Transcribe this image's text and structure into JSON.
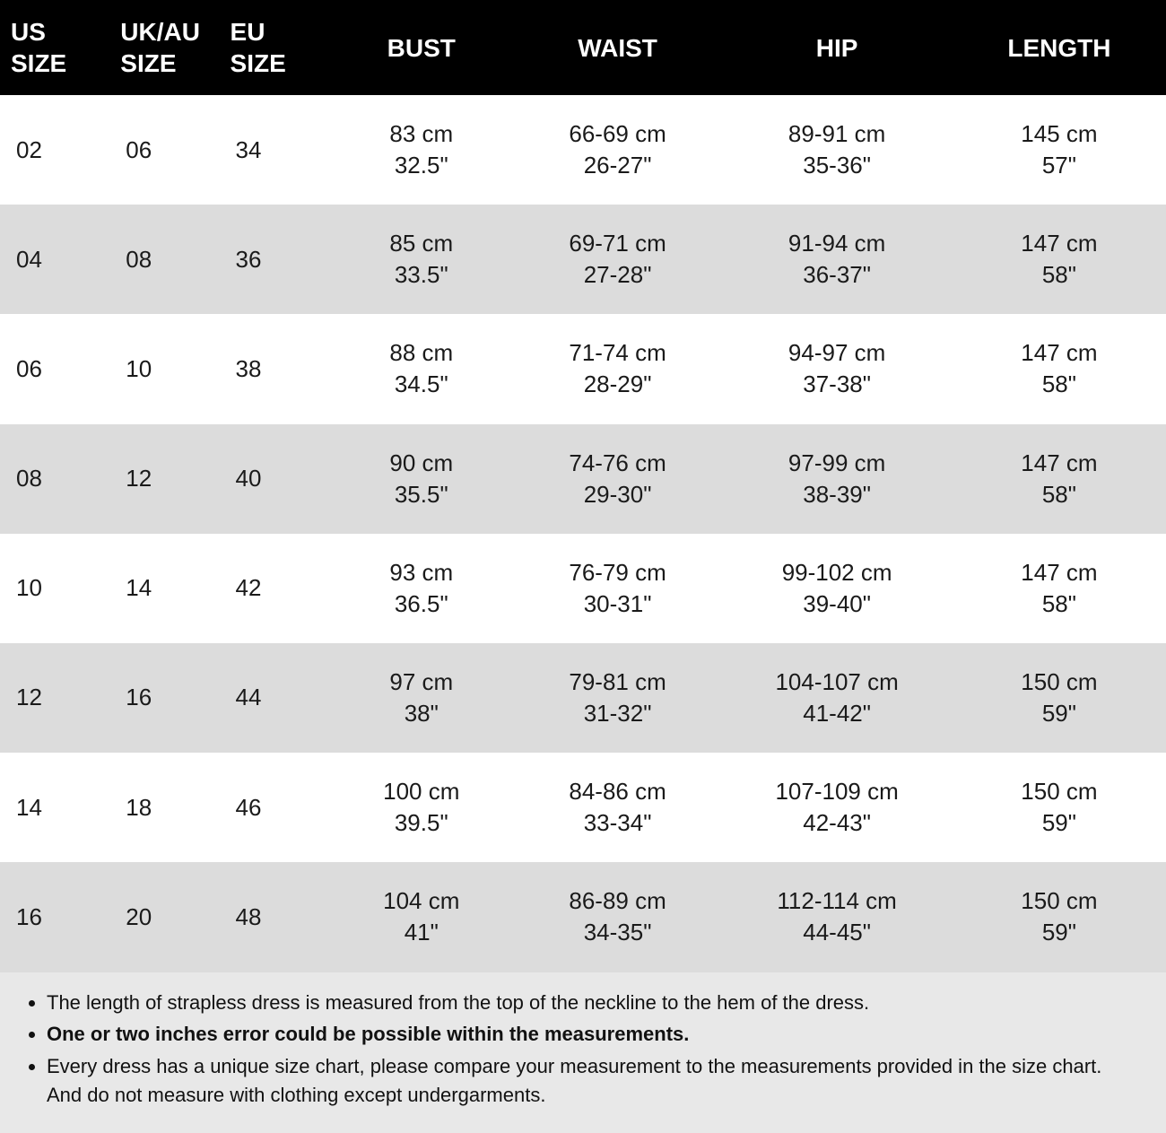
{
  "table": {
    "header_bg": "#000000",
    "header_fg": "#ffffff",
    "row_odd_bg": "#ffffff",
    "row_even_bg": "#dcdcdc",
    "text_color": "#1a1a1a",
    "header_fontsize_pt": 21,
    "body_fontsize_pt": 20,
    "columns": [
      {
        "key": "us",
        "label_line1": "US",
        "label_line2": "SIZE",
        "align": "left",
        "type": "size"
      },
      {
        "key": "ukau",
        "label_line1": "UK/AU",
        "label_line2": "SIZE",
        "align": "left",
        "type": "size"
      },
      {
        "key": "eu",
        "label_line1": "EU",
        "label_line2": "SIZE",
        "align": "left",
        "type": "size"
      },
      {
        "key": "bust",
        "label_line1": "BUST",
        "label_line2": "",
        "align": "center",
        "type": "measure"
      },
      {
        "key": "waist",
        "label_line1": "WAIST",
        "label_line2": "",
        "align": "center",
        "type": "measure"
      },
      {
        "key": "hip",
        "label_line1": "HIP",
        "label_line2": "",
        "align": "center",
        "type": "measure"
      },
      {
        "key": "length",
        "label_line1": "LENGTH",
        "label_line2": "",
        "align": "center",
        "type": "measure"
      }
    ],
    "rows": [
      {
        "us": "02",
        "ukau": "06",
        "eu": "34",
        "bust": {
          "cm": "83 cm",
          "in": "32.5\""
        },
        "waist": {
          "cm": "66-69 cm",
          "in": "26-27\""
        },
        "hip": {
          "cm": "89-91 cm",
          "in": "35-36\""
        },
        "length": {
          "cm": "145 cm",
          "in": "57\""
        }
      },
      {
        "us": "04",
        "ukau": "08",
        "eu": "36",
        "bust": {
          "cm": "85 cm",
          "in": "33.5\""
        },
        "waist": {
          "cm": "69-71 cm",
          "in": "27-28\""
        },
        "hip": {
          "cm": "91-94 cm",
          "in": "36-37\""
        },
        "length": {
          "cm": "147 cm",
          "in": "58\""
        }
      },
      {
        "us": "06",
        "ukau": "10",
        "eu": "38",
        "bust": {
          "cm": "88 cm",
          "in": "34.5\""
        },
        "waist": {
          "cm": "71-74 cm",
          "in": "28-29\""
        },
        "hip": {
          "cm": "94-97 cm",
          "in": "37-38\""
        },
        "length": {
          "cm": "147 cm",
          "in": "58\""
        }
      },
      {
        "us": "08",
        "ukau": "12",
        "eu": "40",
        "bust": {
          "cm": "90 cm",
          "in": "35.5\""
        },
        "waist": {
          "cm": "74-76 cm",
          "in": "29-30\""
        },
        "hip": {
          "cm": "97-99 cm",
          "in": "38-39\""
        },
        "length": {
          "cm": "147 cm",
          "in": "58\""
        }
      },
      {
        "us": "10",
        "ukau": "14",
        "eu": "42",
        "bust": {
          "cm": "93 cm",
          "in": "36.5\""
        },
        "waist": {
          "cm": "76-79 cm",
          "in": "30-31\""
        },
        "hip": {
          "cm": "99-102 cm",
          "in": "39-40\""
        },
        "length": {
          "cm": "147 cm",
          "in": "58\""
        }
      },
      {
        "us": "12",
        "ukau": "16",
        "eu": "44",
        "bust": {
          "cm": "97 cm",
          "in": "38\""
        },
        "waist": {
          "cm": "79-81 cm",
          "in": "31-32\""
        },
        "hip": {
          "cm": "104-107 cm",
          "in": "41-42\""
        },
        "length": {
          "cm": "150 cm",
          "in": "59\""
        }
      },
      {
        "us": "14",
        "ukau": "18",
        "eu": "46",
        "bust": {
          "cm": "100 cm",
          "in": "39.5\""
        },
        "waist": {
          "cm": "84-86 cm",
          "in": "33-34\""
        },
        "hip": {
          "cm": "107-109 cm",
          "in": "42-43\""
        },
        "length": {
          "cm": "150 cm",
          "in": "59\""
        }
      },
      {
        "us": "16",
        "ukau": "20",
        "eu": "48",
        "bust": {
          "cm": "104 cm",
          "in": "41\""
        },
        "waist": {
          "cm": "86-89 cm",
          "in": "34-35\""
        },
        "hip": {
          "cm": "112-114 cm",
          "in": "44-45\""
        },
        "length": {
          "cm": "150 cm",
          "in": "59\""
        }
      }
    ]
  },
  "notes": {
    "bg": "#e8e8e8",
    "fontsize_pt": 17,
    "items": [
      {
        "text": "The length of strapless dress is measured from the top of the neckline to the hem of the dress.",
        "bold": false
      },
      {
        "text": "One or two inches error could be possible within the measurements.",
        "bold": true
      },
      {
        "text": "Every dress has a unique size chart, please compare your measurement to the measurements provided in the size chart. And do not measure with clothing except undergarments.",
        "bold": false
      }
    ]
  }
}
